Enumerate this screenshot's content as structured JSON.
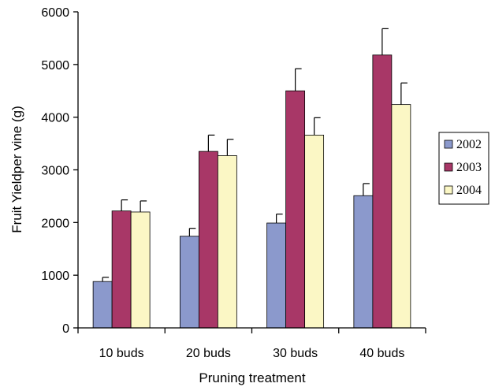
{
  "chart_data": {
    "type": "bar",
    "title": "",
    "xlabel": "Pruning treatment",
    "ylabel": "Fruit Yieldper vine (g)",
    "categories": [
      "10 buds",
      "20 buds",
      "30 buds",
      "40 buds"
    ],
    "ylim": [
      0,
      6000
    ],
    "yticks": [
      0,
      1000,
      2000,
      3000,
      4000,
      5000,
      6000
    ],
    "grid": false,
    "legend_position": "right",
    "series": [
      {
        "name": "2002",
        "color": "#8b99cc",
        "values": [
          880,
          1740,
          1990,
          2510
        ],
        "errors": [
          80,
          150,
          170,
          230
        ]
      },
      {
        "name": "2003",
        "color": "#a83767",
        "values": [
          2220,
          3350,
          4500,
          5180
        ],
        "errors": [
          210,
          310,
          420,
          500
        ]
      },
      {
        "name": "2004",
        "color": "#fbf7c5",
        "values": [
          2200,
          3270,
          3660,
          4240
        ],
        "errors": [
          210,
          310,
          330,
          410
        ]
      }
    ]
  }
}
